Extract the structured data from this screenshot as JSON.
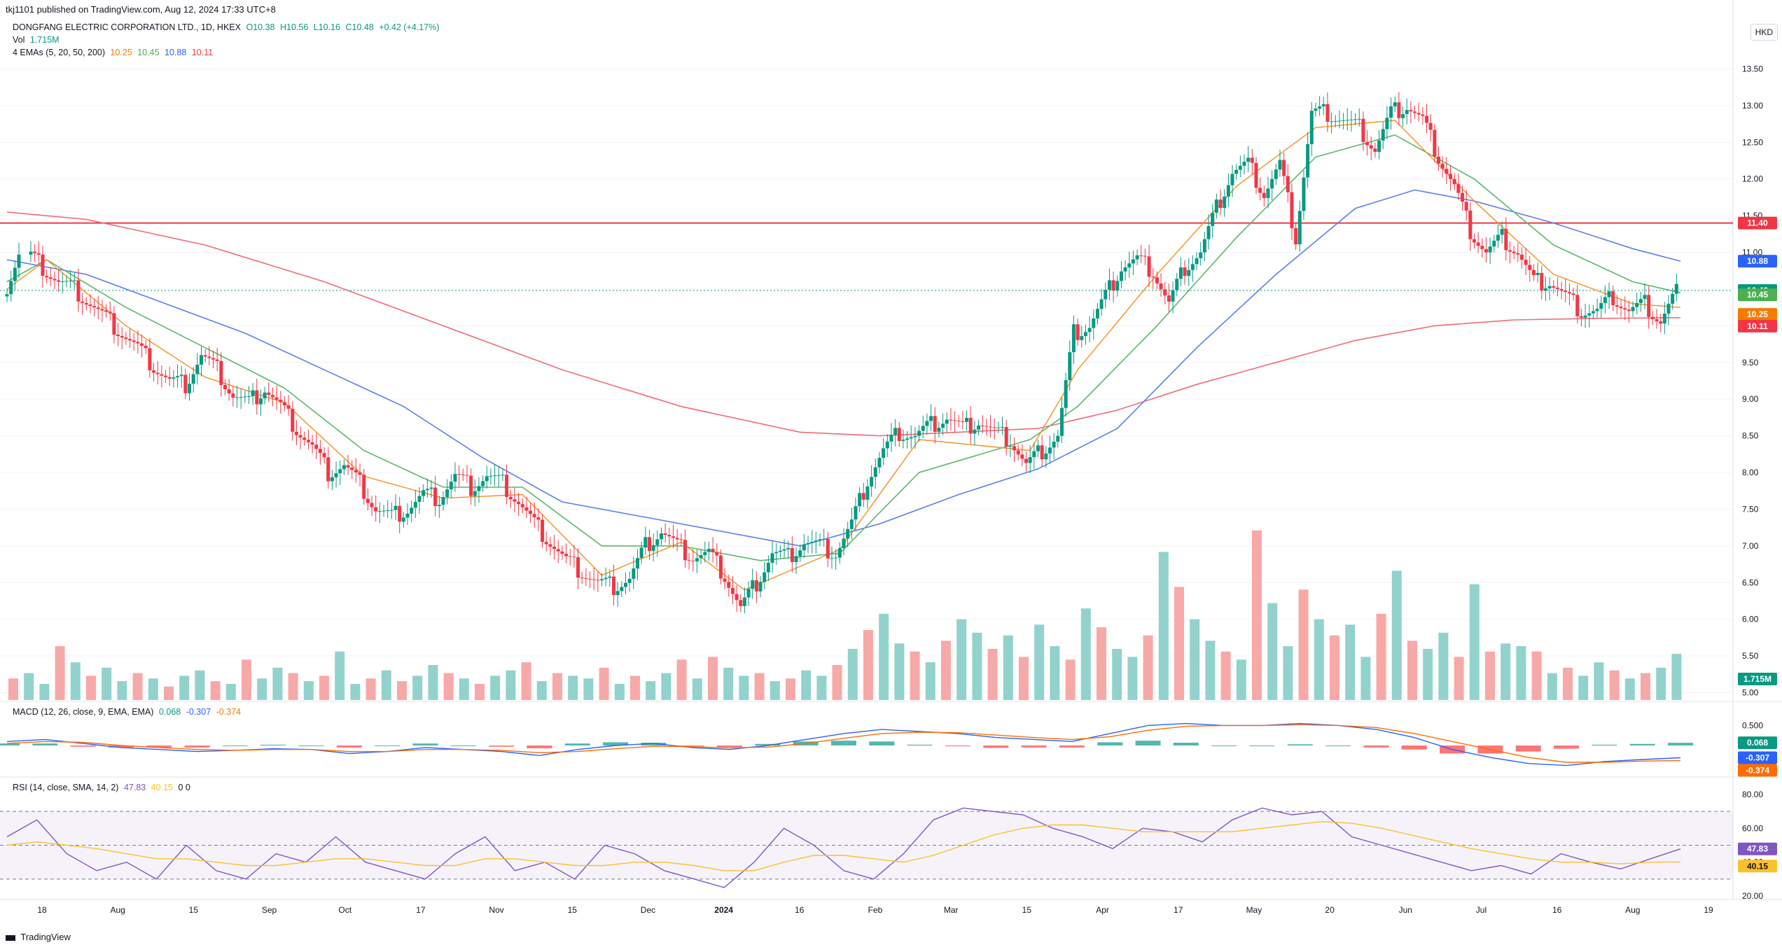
{
  "header": {
    "published": "tkj1101 published on TradingView.com, Aug 12, 2024 17:33 UTC+8"
  },
  "currency": "HKD",
  "legend": {
    "symbol": "DONGFANG ELECTRIC CORPORATION LTD., 1D, HKEX",
    "open": "O10.38",
    "high": "H10.56",
    "low": "L10.16",
    "close": "C10.48",
    "change": "+0.42 (+4.17%)",
    "vol_label": "Vol",
    "vol_value": "1.715M",
    "ema_label": "4 EMAs (5, 20, 50, 200)",
    "ema5": "10.25",
    "ema20": "10.45",
    "ema50": "10.88",
    "ema200": "10.11"
  },
  "macd_legend": {
    "label": "MACD (12, 26, close, 9, EMA, EMA)",
    "hist": "0.068",
    "macd": "-0.307",
    "signal": "-0.374"
  },
  "rsi_legend": {
    "label": "RSI (14, close, SMA, 14, 2)",
    "rsi": "47.83",
    "ma": "40.15",
    "extra": "0 0"
  },
  "footer": {
    "brand": "TradingView"
  },
  "chart_data": [
    {
      "type": "candlestick",
      "title": "DONGFANG ELECTRIC CORPORATION LTD., 1D, HKEX",
      "ylim": [
        4.9,
        13.6
      ],
      "yticks": [
        "13.50",
        "13.00",
        "12.50",
        "12.00",
        "11.50",
        "11.00",
        "10.50",
        "10.00",
        "9.50",
        "9.00",
        "8.50",
        "8.00",
        "7.50",
        "7.00",
        "6.50",
        "6.00",
        "5.50",
        "5.00"
      ],
      "xticks": [
        "18",
        "Aug",
        "15",
        "Sep",
        "Oct",
        "17",
        "Nov",
        "15",
        "Dec",
        "2024",
        "16",
        "Feb",
        "Mar",
        "15",
        "Apr",
        "17",
        "May",
        "20",
        "Jun",
        "Jul",
        "16",
        "Aug",
        "19"
      ],
      "horizontal_line": 11.4,
      "price_labels": [
        {
          "label": "11.40",
          "value": 11.4,
          "color": "#f23645"
        },
        {
          "label": "10.88",
          "value": 10.88,
          "color": "#2962ff"
        },
        {
          "label": "10.48",
          "value": 10.48,
          "color": "#089981"
        },
        {
          "label": "10.45",
          "value": 10.45,
          "color": "#4caf50"
        },
        {
          "label": "10.25",
          "value": 10.25,
          "color": "#f57c00"
        },
        {
          "label": "10.11",
          "value": 10.11,
          "color": "#f23645"
        },
        {
          "label": "1.715M",
          "value": 5.05,
          "color": "#089981"
        }
      ],
      "close_path": [
        [
          0,
          10.4
        ],
        [
          6,
          11.0
        ],
        [
          10,
          10.8
        ],
        [
          14,
          10.6
        ],
        [
          18,
          10.5
        ],
        [
          22,
          10.3
        ],
        [
          26,
          10.1
        ],
        [
          30,
          9.9
        ],
        [
          34,
          9.7
        ],
        [
          38,
          9.45
        ],
        [
          42,
          9.25
        ],
        [
          46,
          9.2
        ],
        [
          50,
          9.6
        ],
        [
          54,
          9.4
        ],
        [
          58,
          9.05
        ],
        [
          62,
          8.95
        ],
        [
          66,
          9.15
        ],
        [
          70,
          8.9
        ],
        [
          74,
          8.6
        ],
        [
          78,
          8.35
        ],
        [
          82,
          8.0
        ],
        [
          86,
          8.1
        ],
        [
          90,
          7.85
        ],
        [
          94,
          7.5
        ],
        [
          98,
          7.4
        ],
        [
          102,
          7.5
        ],
        [
          106,
          7.7
        ],
        [
          110,
          7.65
        ],
        [
          114,
          7.95
        ],
        [
          118,
          7.8
        ],
        [
          122,
          7.95
        ],
        [
          126,
          7.85
        ],
        [
          130,
          7.6
        ],
        [
          134,
          7.3
        ],
        [
          138,
          7.05
        ],
        [
          142,
          6.8
        ],
        [
          146,
          6.65
        ],
        [
          150,
          6.5
        ],
        [
          154,
          6.45
        ],
        [
          158,
          6.55
        ],
        [
          162,
          7.0
        ],
        [
          166,
          7.2
        ],
        [
          170,
          7.0
        ],
        [
          174,
          6.85
        ],
        [
          178,
          6.9
        ],
        [
          182,
          6.6
        ],
        [
          186,
          6.15
        ],
        [
          190,
          6.5
        ],
        [
          194,
          6.9
        ],
        [
          198,
          6.85
        ],
        [
          202,
          7.05
        ],
        [
          206,
          7.0
        ],
        [
          210,
          6.9
        ],
        [
          214,
          7.3
        ],
        [
          218,
          7.9
        ],
        [
          222,
          8.3
        ],
        [
          226,
          8.55
        ],
        [
          230,
          8.5
        ],
        [
          234,
          8.65
        ],
        [
          238,
          8.75
        ],
        [
          242,
          8.6
        ],
        [
          246,
          8.7
        ],
        [
          250,
          8.55
        ],
        [
          254,
          8.45
        ],
        [
          258,
          8.1
        ],
        [
          262,
          8.3
        ],
        [
          266,
          8.5
        ],
        [
          270,
          9.9
        ],
        [
          274,
          10.0
        ],
        [
          278,
          10.4
        ],
        [
          282,
          10.8
        ],
        [
          286,
          10.9
        ],
        [
          290,
          10.75
        ],
        [
          294,
          10.3
        ],
        [
          298,
          10.8
        ],
        [
          302,
          11.0
        ],
        [
          306,
          11.6
        ],
        [
          310,
          12.1
        ],
        [
          314,
          12.2
        ],
        [
          318,
          11.8
        ],
        [
          322,
          12.2
        ],
        [
          326,
          11.2
        ],
        [
          330,
          12.9
        ],
        [
          334,
          12.9
        ],
        [
          338,
          12.8
        ],
        [
          342,
          12.7
        ],
        [
          346,
          12.4
        ],
        [
          350,
          12.9
        ],
        [
          354,
          13.0
        ],
        [
          358,
          12.8
        ],
        [
          362,
          12.3
        ],
        [
          366,
          11.9
        ],
        [
          370,
          11.3
        ],
        [
          374,
          11.0
        ],
        [
          378,
          11.2
        ],
        [
          382,
          11.0
        ],
        [
          386,
          10.6
        ],
        [
          390,
          10.6
        ],
        [
          394,
          10.4
        ],
        [
          398,
          10.2
        ],
        [
          402,
          10.2
        ],
        [
          406,
          10.4
        ],
        [
          410,
          10.2
        ],
        [
          414,
          10.3
        ],
        [
          418,
          10.06
        ],
        [
          422,
          10.48
        ]
      ],
      "ema5": [
        [
          0,
          10.5
        ],
        [
          10,
          10.9
        ],
        [
          30,
          10.0
        ],
        [
          50,
          9.3
        ],
        [
          70,
          8.95
        ],
        [
          90,
          7.95
        ],
        [
          110,
          7.65
        ],
        [
          130,
          7.7
        ],
        [
          150,
          6.6
        ],
        [
          170,
          7.05
        ],
        [
          186,
          6.4
        ],
        [
          210,
          6.95
        ],
        [
          230,
          8.45
        ],
        [
          258,
          8.3
        ],
        [
          270,
          9.4
        ],
        [
          290,
          10.7
        ],
        [
          310,
          11.9
        ],
        [
          330,
          12.7
        ],
        [
          350,
          12.8
        ],
        [
          370,
          11.7
        ],
        [
          390,
          10.7
        ],
        [
          410,
          10.3
        ],
        [
          422,
          10.25
        ]
      ],
      "ema20": [
        [
          0,
          10.6
        ],
        [
          10,
          10.9
        ],
        [
          30,
          10.25
        ],
        [
          50,
          9.7
        ],
        [
          70,
          9.15
        ],
        [
          90,
          8.3
        ],
        [
          110,
          7.8
        ],
        [
          130,
          7.8
        ],
        [
          150,
          7.0
        ],
        [
          170,
          7.0
        ],
        [
          190,
          6.8
        ],
        [
          210,
          6.9
        ],
        [
          230,
          8.0
        ],
        [
          258,
          8.45
        ],
        [
          270,
          8.9
        ],
        [
          290,
          10.0
        ],
        [
          310,
          11.2
        ],
        [
          330,
          12.3
        ],
        [
          350,
          12.6
        ],
        [
          370,
          12.0
        ],
        [
          390,
          11.1
        ],
        [
          410,
          10.6
        ],
        [
          422,
          10.45
        ]
      ],
      "ema50": [
        [
          0,
          10.9
        ],
        [
          20,
          10.7
        ],
        [
          40,
          10.3
        ],
        [
          60,
          9.9
        ],
        [
          80,
          9.4
        ],
        [
          100,
          8.9
        ],
        [
          120,
          8.2
        ],
        [
          140,
          7.6
        ],
        [
          160,
          7.4
        ],
        [
          180,
          7.2
        ],
        [
          200,
          7.0
        ],
        [
          220,
          7.3
        ],
        [
          240,
          7.7
        ],
        [
          260,
          8.05
        ],
        [
          280,
          8.6
        ],
        [
          300,
          9.7
        ],
        [
          320,
          10.7
        ],
        [
          340,
          11.6
        ],
        [
          355,
          11.85
        ],
        [
          370,
          11.7
        ],
        [
          390,
          11.4
        ],
        [
          410,
          11.05
        ],
        [
          422,
          10.88
        ]
      ],
      "ema200": [
        [
          0,
          11.55
        ],
        [
          20,
          11.45
        ],
        [
          50,
          11.1
        ],
        [
          80,
          10.6
        ],
        [
          110,
          10.0
        ],
        [
          140,
          9.4
        ],
        [
          170,
          8.9
        ],
        [
          200,
          8.55
        ],
        [
          220,
          8.5
        ],
        [
          240,
          8.55
        ],
        [
          260,
          8.6
        ],
        [
          280,
          8.85
        ],
        [
          300,
          9.2
        ],
        [
          320,
          9.5
        ],
        [
          340,
          9.8
        ],
        [
          360,
          10.0
        ],
        [
          380,
          10.08
        ],
        [
          400,
          10.1
        ],
        [
          422,
          10.11
        ]
      ]
    },
    {
      "type": "bar",
      "title": "Vol",
      "series_name": "Volume",
      "values": [
        0.8,
        1.0,
        0.6,
        2.0,
        1.4,
        0.9,
        1.2,
        0.7,
        1.0,
        0.8,
        0.5,
        0.9,
        1.1,
        0.7,
        0.6,
        1.5,
        0.8,
        1.2,
        1.0,
        0.7,
        0.9,
        1.8,
        0.6,
        0.8,
        1.1,
        0.7,
        0.9,
        1.3,
        1.0,
        0.8,
        0.6,
        0.9,
        1.1,
        1.4,
        0.7,
        1.0,
        0.9,
        0.8,
        1.2,
        0.6,
        0.9,
        0.7,
        1.0,
        1.5,
        0.8,
        1.6,
        1.2,
        0.9,
        1.0,
        0.7,
        0.8,
        1.1,
        0.9,
        1.3,
        1.9,
        2.6,
        3.2,
        2.1,
        1.8,
        1.4,
        2.2,
        3.0,
        2.5,
        1.9,
        2.4,
        1.6,
        2.8,
        2.0,
        1.5,
        3.4,
        2.7,
        1.9,
        1.6,
        2.4,
        5.5,
        4.2,
        3.0,
        2.2,
        1.8,
        1.5,
        6.3,
        3.6,
        2.0,
        4.1,
        3.0,
        2.4,
        2.8,
        1.6,
        3.2,
        4.8,
        2.2,
        1.9,
        2.5,
        1.6,
        4.3,
        1.8,
        2.1,
        2.0,
        1.8,
        1.0,
        1.2,
        0.9,
        1.4,
        1.1,
        0.8,
        1.0,
        1.2,
        1.715
      ],
      "xlim": [
        0,
        108
      ]
    },
    {
      "type": "line",
      "title": "MACD (12, 26, close, 9, EMA, EMA)",
      "ylim": [
        -0.7,
        0.7
      ],
      "yticks": [
        "0.500",
        "0.000"
      ],
      "series": [
        {
          "name": "MACD",
          "values": [
            0.1,
            0.15,
            0.05,
            -0.05,
            -0.1,
            -0.15,
            -0.12,
            -0.08,
            -0.1,
            -0.2,
            -0.15,
            -0.05,
            -0.1,
            -0.15,
            -0.25,
            -0.1,
            0.0,
            0.05,
            -0.05,
            -0.1,
            0.0,
            0.15,
            0.3,
            0.4,
            0.35,
            0.3,
            0.2,
            0.15,
            0.1,
            0.3,
            0.5,
            0.55,
            0.5,
            0.5,
            0.55,
            0.5,
            0.4,
            0.2,
            -0.1,
            -0.3,
            -0.45,
            -0.5,
            -0.4,
            -0.35,
            -0.307
          ]
        },
        {
          "name": "Signal",
          "values": [
            0.05,
            0.1,
            0.08,
            0.0,
            -0.05,
            -0.1,
            -0.12,
            -0.1,
            -0.1,
            -0.15,
            -0.15,
            -0.1,
            -0.1,
            -0.12,
            -0.18,
            -0.15,
            -0.08,
            -0.02,
            -0.03,
            -0.06,
            -0.04,
            0.05,
            0.18,
            0.3,
            0.33,
            0.32,
            0.26,
            0.2,
            0.15,
            0.22,
            0.38,
            0.48,
            0.5,
            0.5,
            0.52,
            0.5,
            0.45,
            0.3,
            0.1,
            -0.1,
            -0.3,
            -0.42,
            -0.42,
            -0.39,
            -0.374
          ]
        }
      ],
      "histogram": [
        0.05,
        0.05,
        -0.03,
        -0.05,
        -0.05,
        -0.05,
        0.0,
        0.02,
        0.0,
        -0.05,
        0.0,
        0.05,
        0.0,
        -0.03,
        -0.07,
        0.05,
        0.08,
        0.07,
        -0.02,
        -0.04,
        0.04,
        0.1,
        0.12,
        0.1,
        0.02,
        -0.02,
        -0.06,
        -0.05,
        -0.05,
        0.08,
        0.12,
        0.07,
        0.0,
        0.0,
        0.03,
        0.0,
        -0.05,
        -0.1,
        -0.2,
        -0.2,
        -0.15,
        -0.08,
        0.02,
        0.04,
        0.068
      ]
    },
    {
      "type": "line",
      "title": "RSI (14, close, SMA, 14, 2)",
      "ylim": [
        20,
        80
      ],
      "yticks": [
        "80.00",
        "60.00",
        "40.00",
        "20.00"
      ],
      "bands": [
        70,
        50,
        30
      ],
      "series": [
        {
          "name": "RSI",
          "values": [
            55,
            65,
            45,
            35,
            40,
            30,
            50,
            35,
            30,
            45,
            40,
            55,
            40,
            35,
            30,
            45,
            55,
            35,
            40,
            30,
            50,
            45,
            35,
            30,
            25,
            40,
            60,
            50,
            35,
            30,
            45,
            65,
            72,
            70,
            68,
            60,
            55,
            48,
            60,
            58,
            52,
            65,
            72,
            68,
            70,
            55,
            50,
            45,
            40,
            35,
            38,
            33,
            45,
            40,
            36,
            42,
            47.83
          ]
        },
        {
          "name": "RSI-based MA",
          "values": [
            50,
            52,
            50,
            48,
            45,
            42,
            42,
            40,
            38,
            38,
            40,
            42,
            42,
            40,
            38,
            38,
            42,
            42,
            40,
            38,
            38,
            40,
            40,
            38,
            35,
            35,
            40,
            44,
            44,
            42,
            40,
            44,
            50,
            56,
            60,
            62,
            62,
            60,
            58,
            58,
            58,
            58,
            60,
            62,
            64,
            63,
            60,
            56,
            52,
            48,
            45,
            42,
            40,
            40,
            39,
            40,
            40.15
          ]
        }
      ]
    }
  ]
}
